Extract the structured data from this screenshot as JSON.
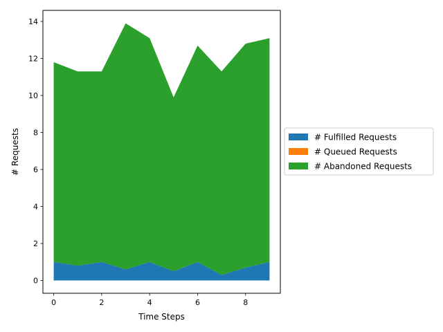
{
  "chart_data": {
    "type": "area",
    "stacked": true,
    "title": "",
    "xlabel": "Time Steps",
    "ylabel": "# Requests",
    "x": [
      0,
      1,
      2,
      3,
      4,
      5,
      6,
      7,
      8,
      9
    ],
    "xlim": [
      -0.45,
      9.45
    ],
    "ylim": [
      -0.69,
      14.6
    ],
    "xticks": [
      0,
      2,
      4,
      6,
      8
    ],
    "yticks": [
      0,
      2,
      4,
      6,
      8,
      10,
      12,
      14
    ],
    "grid": false,
    "legend_position": "center-right, outside plot",
    "series": [
      {
        "name": "# Fulfilled Requests",
        "color": "#1f77b4",
        "values": [
          1.0,
          0.8,
          1.0,
          0.6,
          1.0,
          0.5,
          1.0,
          0.3,
          0.7,
          1.0
        ]
      },
      {
        "name": "# Queued Requests",
        "color": "#ff7f0e",
        "values": [
          0,
          0,
          0,
          0,
          0,
          0,
          0,
          0,
          0,
          0
        ]
      },
      {
        "name": "# Abandoned Requests",
        "color": "#2ca02c",
        "values": [
          10.8,
          10.5,
          10.3,
          13.3,
          12.1,
          9.4,
          11.7,
          11.0,
          12.1,
          12.1
        ]
      }
    ]
  }
}
